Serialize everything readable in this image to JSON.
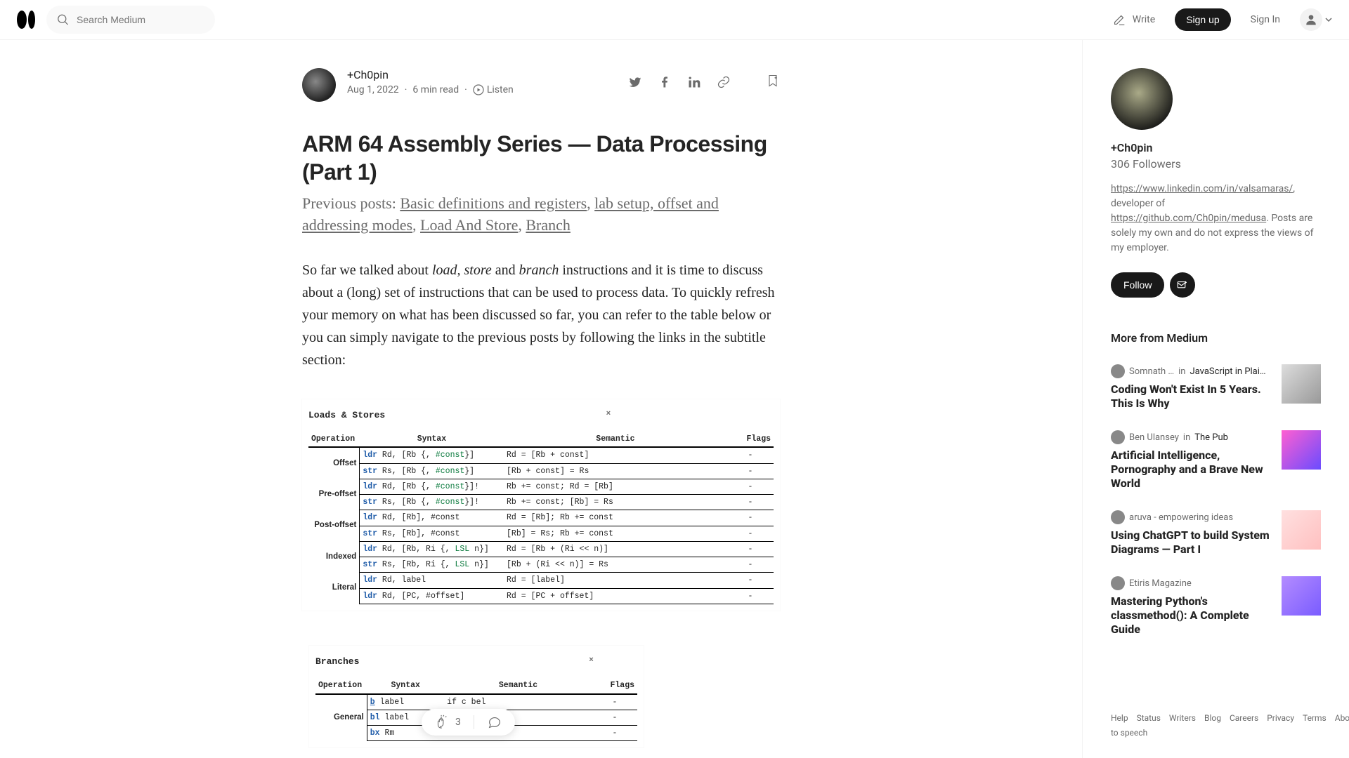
{
  "nav": {
    "search_placeholder": "Search Medium",
    "write": "Write",
    "signup": "Sign up",
    "signin": "Sign In"
  },
  "article": {
    "author": "+Ch0pin",
    "date": "Aug 1, 2022",
    "read_time": "6 min read",
    "listen": "Listen",
    "title": "ARM 64 Assembly Series — Data Processing (Part 1)",
    "subtitle_prefix": "Previous posts: ",
    "links": {
      "l1": "Basic definitions and registers",
      "l2": "lab setup, offset and addressing modes",
      "l3": "Load And Store",
      "l4": "Branch"
    },
    "para_before_italic": "So far we talked about ",
    "italic1": "load, store",
    "para_and": " and ",
    "italic2": "branch",
    "para_after": " instructions and it is time to discuss about a (long) set of instructions that can be used to process data. To quickly refresh your memory on what has been discussed so far, you can refer to the table below or you can simply navigate to the previous posts by following the links in the subtitle section:"
  },
  "table1": {
    "title": "Loads & Stores",
    "x_left": "64%",
    "headers": {
      "op": "Operation",
      "syntax": "Syntax",
      "sem": "Semantic",
      "flags": "Flags"
    },
    "groups": [
      {
        "label": "Offset",
        "rows": [
          {
            "kw": "ldr",
            "kwclass": "kw-ldr",
            "syn": "Rd, [Rb {, <span class='kw-const'>#const</span>}]",
            "sem": "Rd = [Rb + const]",
            "flags": "-"
          },
          {
            "kw": "str",
            "kwclass": "kw-str",
            "syn": "Rs, [Rb {, <span class='kw-const'>#const</span>}]",
            "sem": "[Rb + const] = Rs",
            "flags": "-"
          }
        ]
      },
      {
        "label": "Pre-offset",
        "rows": [
          {
            "kw": "ldr",
            "kwclass": "kw-ldr",
            "syn": "Rd, [Rb {, <span class='kw-const'>#const</span>}]!",
            "sem": "Rb += const; Rd = [Rb]",
            "flags": "-"
          },
          {
            "kw": "str",
            "kwclass": "kw-str",
            "syn": "Rs, [Rb {, <span class='kw-const'>#const</span>}]!",
            "sem": "Rb += const; [Rb] = Rs",
            "flags": "-"
          }
        ]
      },
      {
        "label": "Post-offset",
        "rows": [
          {
            "kw": "ldr",
            "kwclass": "kw-ldr",
            "syn": "Rd, [Rb], #const",
            "sem": "Rd = [Rb]; Rb += const",
            "flags": "-"
          },
          {
            "kw": "str",
            "kwclass": "kw-str",
            "syn": "Rs, [Rb], #const",
            "sem": "[Rb] = Rs; Rb += const",
            "flags": "-"
          }
        ]
      },
      {
        "label": "Indexed",
        "rows": [
          {
            "kw": "ldr",
            "kwclass": "kw-ldr",
            "syn": "Rd, [Rb, Ri {, <span class='kw-lsl'>LSL</span> n}]",
            "sem": "Rd = [Rb + (Ri << n)]",
            "flags": "-"
          },
          {
            "kw": "str",
            "kwclass": "kw-str",
            "syn": "Rs, [Rb, Ri {, <span class='kw-lsl'>LSL</span> n}]",
            "sem": "[Rb + (Ri << n)] = Rs",
            "flags": "-"
          }
        ]
      },
      {
        "label": "Literal",
        "rows": [
          {
            "kw": "ldr",
            "kwclass": "kw-ldr",
            "syn": "Rd, label",
            "sem": "Rd = [label]",
            "flags": "-"
          },
          {
            "kw": "ldr",
            "kwclass": "kw-ldr",
            "syn": "Rd, [PC, #offset]",
            "sem": "Rd = [PC + offset]",
            "flags": "-"
          }
        ]
      }
    ]
  },
  "table2": {
    "title": "Branches",
    "x_left": "85%",
    "headers": {
      "op": "Operation",
      "syntax": "Syntax",
      "sem": "Semantic",
      "flags": "Flags"
    },
    "group_label": "General",
    "rows": [
      {
        "kw": "b<c>",
        "kwclass": "kw-b",
        "syn": "label",
        "sem": "if c                  bel",
        "flags": "-"
      },
      {
        "kw": "bl",
        "kwclass": "kw-ldr",
        "syn": "label",
        "sem": "LR                   bel",
        "flags": "-"
      },
      {
        "kw": "bx",
        "kwclass": "kw-ldr",
        "syn": "Rm",
        "sem": "PC = Rm",
        "flags": "-"
      }
    ]
  },
  "sidebar": {
    "name": "+Ch0pin",
    "followers": "306 Followers",
    "bio_link1": "https://www.linkedin.com/in/valsamaras/",
    "bio_mid1": ", developer of ",
    "bio_link2": "https://github.com/Ch0pin/medusa",
    "bio_mid2": ". Posts are solely my own and do not express the views of my employer.",
    "follow": "Follow",
    "more_heading": "More from Medium",
    "recs": [
      {
        "author": "Somnath …",
        "in": "in",
        "pub": "JavaScript in Plai…",
        "title": "Coding Won't Exist In 5 Years. This Is Why",
        "thumb": "t1"
      },
      {
        "author": "Ben Ulansey",
        "in": "in",
        "pub": "The Pub",
        "title": "Artificial Intelligence, Pornography and a Brave New World",
        "thumb": "t2"
      },
      {
        "author": "aruva - empowering ideas",
        "in": "",
        "pub": "",
        "title": "Using ChatGPT to build System Diagrams — Part I",
        "thumb": "t3"
      },
      {
        "author": "Etiris Magazine",
        "in": "",
        "pub": "",
        "title": "Mastering Python's classmethod(): A Complete Guide",
        "thumb": "t4"
      }
    ]
  },
  "footer": {
    "links": [
      "Help",
      "Status",
      "Writers",
      "Blog",
      "Careers",
      "Privacy",
      "Terms",
      "About",
      "Text to speech"
    ]
  },
  "clapbar": {
    "claps": "3"
  },
  "colors": {
    "text": "#242424",
    "muted": "#6b6b6b",
    "border": "#f2f2f2",
    "black": "#191919",
    "white": "#ffffff"
  }
}
